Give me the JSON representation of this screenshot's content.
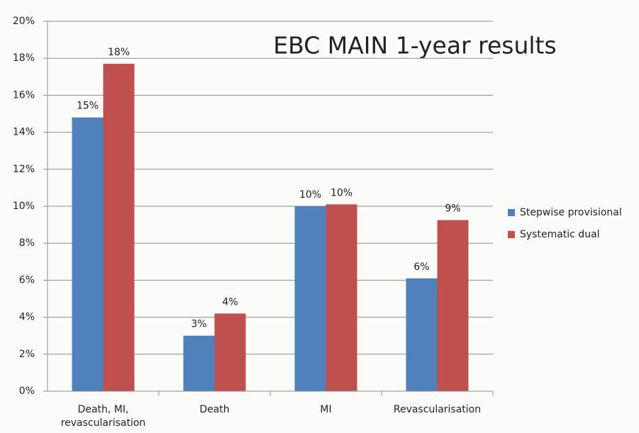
{
  "chart_data": {
    "type": "bar",
    "title": "EBC MAIN 1-year results",
    "categories": [
      "Death, MI, revascularisation",
      "Death",
      "MI",
      "Revascularisation"
    ],
    "series": [
      {
        "name": "Stepwise provisional",
        "color": "#4f81bd",
        "values": [
          14.8,
          3.0,
          10.0,
          6.1
        ],
        "value_labels": [
          "15%",
          "3%",
          "10%",
          "6%"
        ]
      },
      {
        "name": "Systematic dual",
        "color": "#c0504d",
        "values": [
          17.7,
          4.2,
          10.1,
          9.25
        ],
        "value_labels": [
          "18%",
          "4%",
          "10%",
          "9%"
        ]
      }
    ],
    "ylim": [
      0,
      20
    ],
    "yticks": [
      {
        "value": 0,
        "label": "0%"
      },
      {
        "value": 2,
        "label": "2%"
      },
      {
        "value": 4,
        "label": "4%"
      },
      {
        "value": 6,
        "label": "6%"
      },
      {
        "value": 8,
        "label": "8%"
      },
      {
        "value": 10,
        "label": "10%"
      },
      {
        "value": 12,
        "label": "12%"
      },
      {
        "value": 14,
        "label": "14%"
      },
      {
        "value": 16,
        "label": "16%"
      },
      {
        "value": 18,
        "label": "18%"
      },
      {
        "value": 20,
        "label": "20%"
      }
    ],
    "grid": true,
    "legend": "right"
  }
}
